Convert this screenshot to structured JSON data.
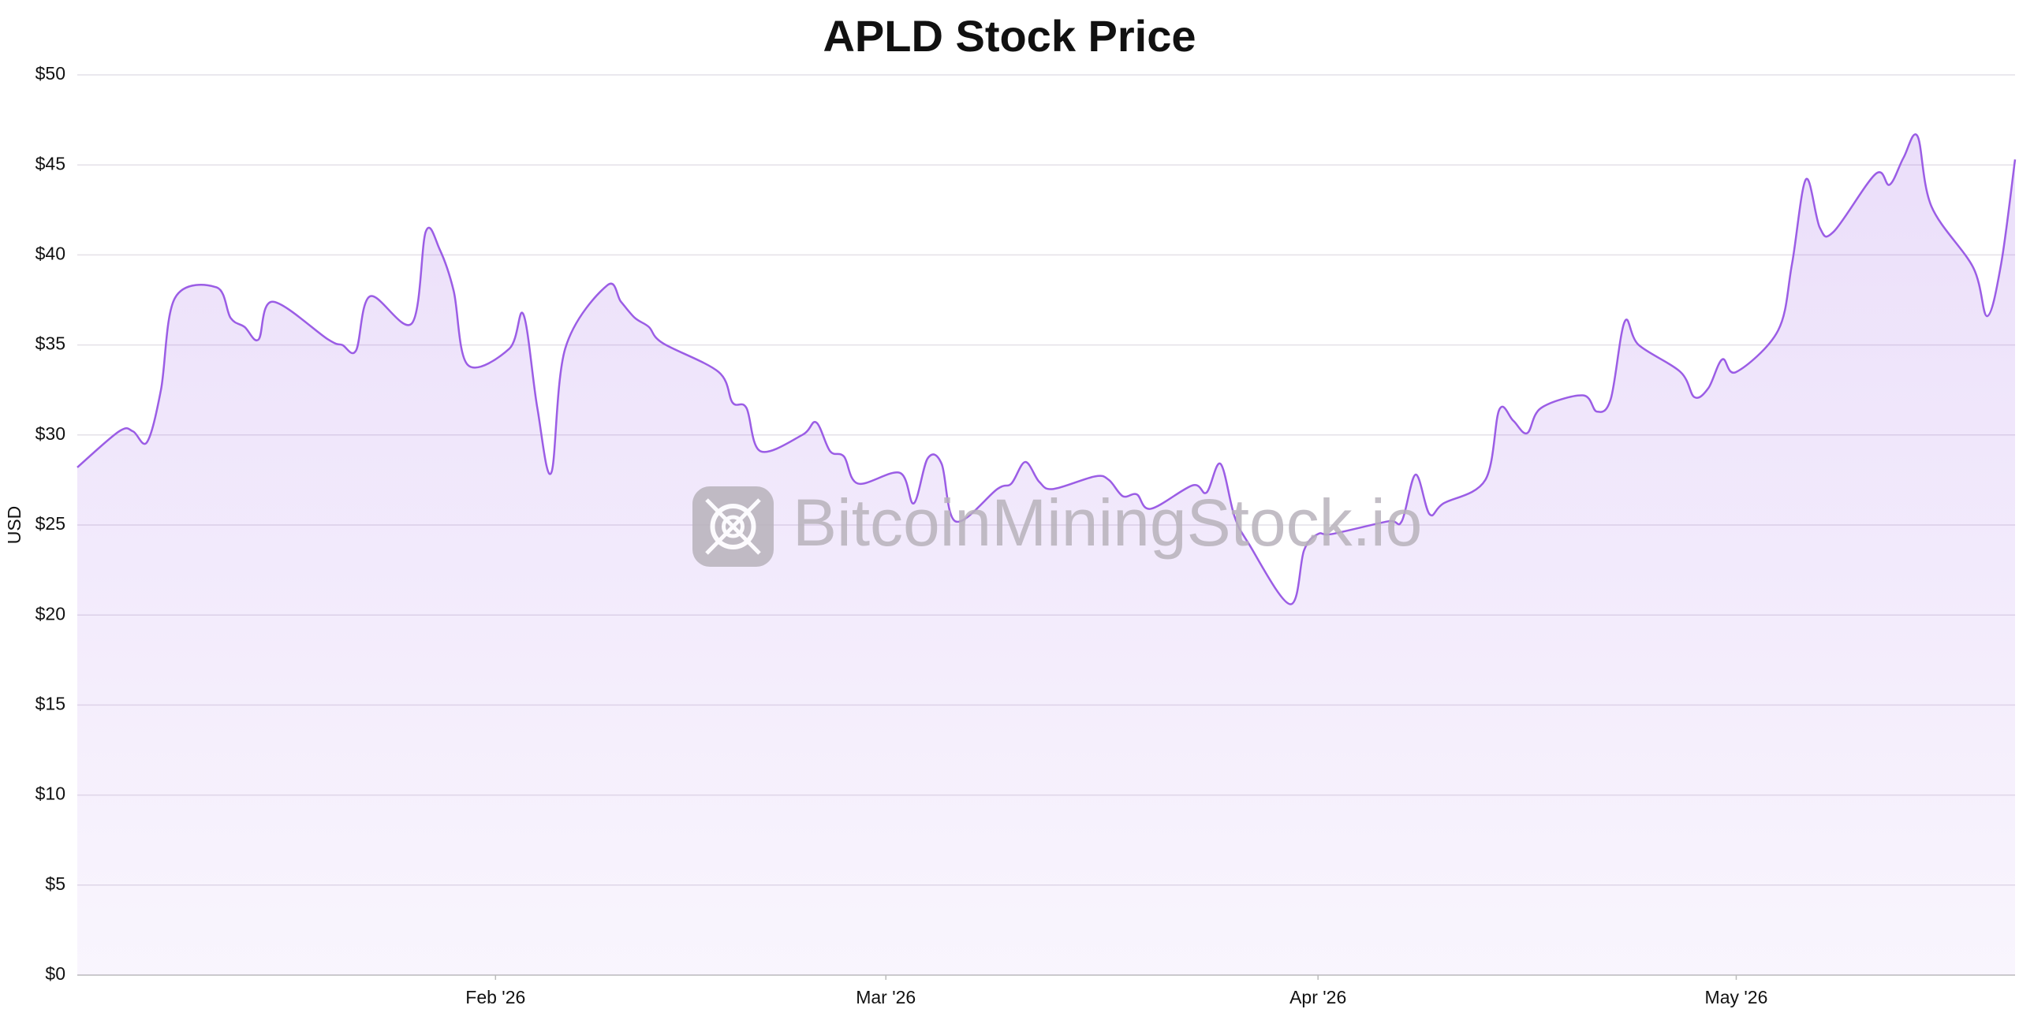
{
  "chart_data": {
    "type": "line",
    "title": "APLD Stock Price",
    "ylabel": "USD",
    "watermark": "BitcoinMiningStock.io",
    "x": [
      "2026-01-02",
      "2026-01-05",
      "2026-01-06",
      "2026-01-07",
      "2026-01-08",
      "2026-01-09",
      "2026-01-12",
      "2026-01-13",
      "2026-01-14",
      "2026-01-15",
      "2026-01-16",
      "2026-01-20",
      "2026-01-21",
      "2026-01-22",
      "2026-01-23",
      "2026-01-26",
      "2026-01-27",
      "2026-01-28",
      "2026-01-29",
      "2026-01-30",
      "2026-02-02",
      "2026-02-03",
      "2026-02-04",
      "2026-02-05",
      "2026-02-06",
      "2026-02-09",
      "2026-02-10",
      "2026-02-11",
      "2026-02-12",
      "2026-02-13",
      "2026-02-17",
      "2026-02-18",
      "2026-02-19",
      "2026-02-20",
      "2026-02-23",
      "2026-02-24",
      "2026-02-25",
      "2026-02-26",
      "2026-02-27",
      "2026-03-02",
      "2026-03-03",
      "2026-03-04",
      "2026-03-05",
      "2026-03-06",
      "2026-03-09",
      "2026-03-10",
      "2026-03-11",
      "2026-03-12",
      "2026-03-13",
      "2026-03-16",
      "2026-03-17",
      "2026-03-18",
      "2026-03-19",
      "2026-03-20",
      "2026-03-23",
      "2026-03-24",
      "2026-03-25",
      "2026-03-26",
      "2026-03-27",
      "2026-03-30",
      "2026-03-31",
      "2026-04-01",
      "2026-04-02",
      "2026-04-06",
      "2026-04-07",
      "2026-04-08",
      "2026-04-09",
      "2026-04-10",
      "2026-04-13",
      "2026-04-14",
      "2026-04-15",
      "2026-04-16",
      "2026-04-17",
      "2026-04-20",
      "2026-04-21",
      "2026-04-22",
      "2026-04-23",
      "2026-04-24",
      "2026-04-27",
      "2026-04-28",
      "2026-04-29",
      "2026-04-30",
      "2026-05-01",
      "2026-05-04",
      "2026-05-05",
      "2026-05-06",
      "2026-05-07",
      "2026-05-08",
      "2026-05-11",
      "2026-05-12",
      "2026-05-13",
      "2026-05-14",
      "2026-05-15",
      "2026-05-18",
      "2026-05-19",
      "2026-05-20",
      "2026-05-21"
    ],
    "series": [
      {
        "name": "APLD",
        "color": "#9b5de5",
        "values": [
          28.2,
          30.2,
          30.2,
          29.6,
          32.5,
          37.6,
          38.2,
          36.5,
          36.0,
          35.3,
          37.4,
          35.3,
          35.0,
          34.7,
          37.7,
          36.2,
          41.3,
          40.3,
          38.0,
          33.9,
          34.8,
          36.7,
          31.5,
          27.9,
          34.8,
          38.3,
          37.4,
          36.5,
          36.0,
          35.1,
          33.5,
          31.8,
          31.5,
          29.1,
          30.0,
          30.7,
          29.1,
          28.8,
          27.3,
          27.9,
          26.2,
          28.7,
          28.4,
          25.2,
          27.0,
          27.3,
          28.5,
          27.4,
          27.0,
          27.7,
          27.5,
          26.6,
          26.7,
          25.9,
          27.2,
          26.8,
          28.4,
          25.5,
          24.0,
          20.6,
          23.6,
          24.5,
          24.5,
          25.2,
          25.2,
          27.8,
          25.6,
          26.2,
          27.5,
          31.4,
          30.8,
          30.1,
          31.5,
          32.2,
          31.3,
          32.0,
          36.3,
          35.0,
          33.5,
          32.1,
          32.6,
          34.2,
          33.5,
          35.8,
          39.5,
          44.2,
          41.5,
          41.3,
          44.5,
          43.9,
          45.4,
          46.6,
          42.7,
          39.3,
          36.6,
          39.5,
          45.3
        ]
      }
    ],
    "xlim": [
      "2026-01-02",
      "2026-05-21"
    ],
    "xticks": [
      {
        "value": "2026-02-01",
        "label": "Feb '26"
      },
      {
        "value": "2026-03-01",
        "label": "Mar '26"
      },
      {
        "value": "2026-04-01",
        "label": "Apr '26"
      },
      {
        "value": "2026-05-01",
        "label": "May '26"
      }
    ],
    "ylim": [
      0,
      50
    ],
    "yticks": [
      {
        "value": 0,
        "label": "$0"
      },
      {
        "value": 5,
        "label": "$5"
      },
      {
        "value": 10,
        "label": "$10"
      },
      {
        "value": 15,
        "label": "$15"
      },
      {
        "value": 20,
        "label": "$20"
      },
      {
        "value": 25,
        "label": "$25"
      },
      {
        "value": 30,
        "label": "$30"
      },
      {
        "value": 35,
        "label": "$35"
      },
      {
        "value": 40,
        "label": "$40"
      },
      {
        "value": 45,
        "label": "$45"
      },
      {
        "value": 50,
        "label": "$50"
      }
    ],
    "grid": true
  }
}
